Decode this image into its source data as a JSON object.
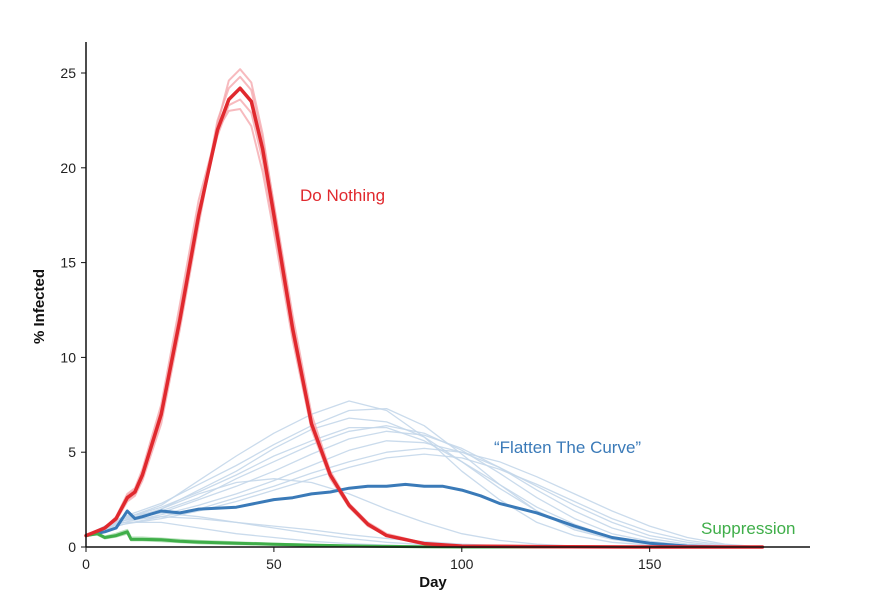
{
  "chart_data": {
    "type": "line",
    "title": "",
    "xlabel": "Day",
    "ylabel": "% Infected",
    "xlim": [
      0,
      190
    ],
    "ylim": [
      0,
      26
    ],
    "xticks": [
      0,
      50,
      100,
      150
    ],
    "yticks": [
      0,
      5,
      10,
      15,
      20,
      25
    ],
    "grid": false,
    "legend": "inline labels",
    "series": [
      {
        "name": "Do Nothing",
        "color": "#e0292e",
        "ensemble_color": "#f4a3a8",
        "x": [
          0,
          5,
          8,
          11,
          13,
          15,
          20,
          25,
          30,
          35,
          38,
          41,
          44,
          47,
          50,
          55,
          60,
          65,
          70,
          75,
          80,
          90,
          100,
          120,
          150,
          180
        ],
        "y": [
          0.6,
          1.0,
          1.5,
          2.6,
          2.9,
          3.8,
          7.0,
          12.0,
          17.5,
          22.0,
          23.6,
          24.2,
          23.5,
          21.0,
          17.5,
          11.5,
          6.5,
          3.8,
          2.2,
          1.2,
          0.6,
          0.18,
          0.05,
          0.02,
          0.0,
          0.0
        ],
        "ensemble": [
          {
            "x": [
              0,
              5,
              8,
              11,
              13,
              15,
              20,
              25,
              30,
              35,
              38,
              41,
              44,
              47,
              50,
              55,
              60,
              65,
              70,
              75,
              80,
              90,
              100,
              120,
              150,
              180
            ],
            "y": [
              0.6,
              1.0,
              1.4,
              2.4,
              2.7,
              3.5,
              6.5,
              11.5,
              17.0,
              22.3,
              24.6,
              25.2,
              24.5,
              21.8,
              18.0,
              11.8,
              6.7,
              3.9,
              2.2,
              1.2,
              0.6,
              0.18,
              0.05,
              0.02,
              0.0,
              0.0
            ]
          },
          {
            "x": [
              0,
              5,
              8,
              11,
              13,
              15,
              20,
              25,
              30,
              35,
              38,
              41,
              44,
              47,
              50,
              55,
              60,
              65,
              70,
              75,
              80,
              90,
              100,
              120,
              150,
              180
            ],
            "y": [
              0.6,
              1.0,
              1.6,
              2.8,
              3.1,
              4.1,
              7.5,
              12.8,
              18.3,
              22.0,
              23.0,
              23.1,
              22.2,
              19.8,
              16.6,
              10.9,
              6.2,
              3.6,
              2.1,
              1.1,
              0.6,
              0.18,
              0.05,
              0.02,
              0.0,
              0.0
            ]
          },
          {
            "x": [
              0,
              5,
              8,
              11,
              13,
              15,
              20,
              25,
              30,
              35,
              38,
              41,
              44,
              47,
              50,
              55,
              60,
              65,
              70,
              75,
              80,
              90,
              100,
              120,
              150,
              180
            ],
            "y": [
              0.6,
              1.0,
              1.5,
              2.5,
              2.8,
              3.7,
              6.8,
              11.8,
              17.3,
              22.5,
              24.2,
              24.8,
              24.1,
              21.5,
              18.1,
              12.2,
              7.0,
              4.0,
              2.3,
              1.3,
              0.7,
              0.2,
              0.05,
              0.02,
              0.0,
              0.0
            ]
          },
          {
            "x": [
              0,
              5,
              8,
              11,
              13,
              15,
              20,
              25,
              30,
              35,
              38,
              41,
              44,
              47,
              50,
              55,
              60,
              65,
              70,
              75,
              80,
              90,
              100,
              120,
              150,
              180
            ],
            "y": [
              0.6,
              1.0,
              1.5,
              2.7,
              3.0,
              3.9,
              7.2,
              12.4,
              17.8,
              21.7,
              23.3,
              23.6,
              22.9,
              20.4,
              17.0,
              11.2,
              6.4,
              3.7,
              2.1,
              1.2,
              0.6,
              0.17,
              0.05,
              0.02,
              0.0,
              0.0
            ]
          }
        ]
      },
      {
        "name": "“Flatten The Curve”",
        "color": "#3a7ab8",
        "ensemble_color": "#c4d7ea",
        "x": [
          0,
          5,
          8,
          11,
          13,
          15,
          20,
          25,
          30,
          40,
          50,
          55,
          60,
          65,
          70,
          75,
          80,
          85,
          90,
          95,
          100,
          105,
          110,
          120,
          130,
          140,
          150,
          160,
          170,
          180
        ],
        "y": [
          0.6,
          0.8,
          1.0,
          1.9,
          1.5,
          1.6,
          1.9,
          1.8,
          2.0,
          2.1,
          2.5,
          2.6,
          2.8,
          2.9,
          3.1,
          3.2,
          3.2,
          3.3,
          3.2,
          3.2,
          3.0,
          2.7,
          2.3,
          1.8,
          1.1,
          0.5,
          0.2,
          0.05,
          0.0,
          0.0
        ],
        "ensemble": [
          {
            "x": [
              0,
              10,
              20,
              30,
              40,
              50,
              60,
              70,
              80,
              90,
              100,
              110,
              120,
              130,
              140,
              150,
              160,
              170,
              180
            ],
            "y": [
              0.6,
              1.5,
              2.2,
              3.5,
              4.8,
              6.0,
              7.0,
              7.7,
              7.2,
              5.8,
              4.0,
              2.5,
              1.3,
              0.6,
              0.25,
              0.1,
              0.05,
              0.0,
              0.0
            ]
          },
          {
            "x": [
              0,
              10,
              20,
              30,
              40,
              50,
              60,
              70,
              80,
              90,
              100,
              110,
              120,
              130,
              140,
              150,
              160,
              170,
              180
            ],
            "y": [
              0.6,
              1.4,
              2.0,
              3.0,
              4.0,
              5.2,
              6.2,
              6.8,
              6.6,
              5.8,
              4.5,
              3.1,
              1.9,
              1.0,
              0.45,
              0.2,
              0.05,
              0.0,
              0.0
            ]
          },
          {
            "x": [
              0,
              10,
              20,
              30,
              40,
              50,
              60,
              70,
              80,
              90,
              100,
              110,
              120,
              130,
              140,
              150,
              160,
              170,
              180
            ],
            "y": [
              0.6,
              1.6,
              1.9,
              2.6,
              3.6,
              4.5,
              5.4,
              6.1,
              6.4,
              6.0,
              5.1,
              3.9,
              2.6,
              1.5,
              0.7,
              0.3,
              0.1,
              0.0,
              0.0
            ]
          },
          {
            "x": [
              0,
              10,
              20,
              30,
              40,
              50,
              60,
              70,
              80,
              90,
              100,
              110,
              120,
              130,
              140,
              150,
              160,
              170,
              180
            ],
            "y": [
              0.6,
              1.3,
              1.7,
              2.2,
              2.8,
              3.5,
              4.3,
              5.1,
              5.6,
              5.5,
              5.0,
              4.2,
              3.2,
              2.2,
              1.3,
              0.6,
              0.25,
              0.05,
              0.0
            ]
          },
          {
            "x": [
              0,
              10,
              20,
              30,
              40,
              50,
              60,
              70,
              80,
              90,
              100,
              110,
              120,
              130,
              140,
              150,
              160,
              170,
              180
            ],
            "y": [
              0.6,
              1.5,
              2.1,
              2.9,
              3.8,
              4.8,
              5.6,
              6.3,
              6.3,
              5.6,
              4.5,
              3.3,
              2.1,
              1.2,
              0.5,
              0.2,
              0.05,
              0.0,
              0.0
            ]
          },
          {
            "x": [
              0,
              10,
              20,
              30,
              40,
              50,
              60,
              70,
              80,
              90,
              100,
              110,
              120,
              130,
              140,
              150,
              160,
              170,
              180
            ],
            "y": [
              0.6,
              1.2,
              1.5,
              1.9,
              2.4,
              3.0,
              3.6,
              4.2,
              4.7,
              4.9,
              4.7,
              4.1,
              3.3,
              2.4,
              1.5,
              0.8,
              0.35,
              0.1,
              0.0
            ]
          },
          {
            "x": [
              0,
              10,
              20,
              30,
              40,
              50,
              60,
              70,
              80,
              90,
              100,
              110,
              120,
              130,
              140,
              150,
              160,
              170,
              180
            ],
            "y": [
              0.6,
              1.4,
              1.8,
              2.5,
              3.2,
              4.0,
              4.9,
              5.7,
              6.1,
              5.9,
              5.2,
              4.2,
              3.0,
              1.9,
              1.0,
              0.45,
              0.15,
              0.03,
              0.0
            ]
          },
          {
            "x": [
              0,
              10,
              20,
              30,
              40,
              50,
              60,
              70,
              80,
              90,
              100,
              110,
              120,
              130,
              140,
              150,
              160,
              170,
              180
            ],
            "y": [
              0.6,
              1.6,
              2.3,
              3.3,
              4.3,
              5.4,
              6.4,
              7.2,
              7.3,
              6.4,
              4.9,
              3.3,
              1.9,
              0.9,
              0.4,
              0.15,
              0.05,
              0.0,
              0.0
            ]
          },
          {
            "x": [
              0,
              10,
              20,
              30,
              40,
              50,
              60,
              70,
              80,
              90,
              100,
              110,
              120,
              130,
              140,
              150,
              160,
              170,
              180
            ],
            "y": [
              0.6,
              1.2,
              1.6,
              2.0,
              2.6,
              3.2,
              3.9,
              4.5,
              5.0,
              5.2,
              5.0,
              4.5,
              3.7,
              2.8,
              1.9,
              1.1,
              0.5,
              0.15,
              0.0
            ]
          },
          {
            "x": [
              0,
              10,
              20,
              30,
              40,
              50,
              60,
              70,
              80,
              90,
              100,
              110,
              120,
              130,
              140,
              150,
              160,
              170,
              180
            ],
            "y": [
              0.6,
              1.5,
              1.8,
              1.6,
              1.3,
              1.0,
              0.7,
              0.45,
              0.25,
              0.12,
              0.05,
              0.02,
              0.0,
              0.0,
              0.0,
              0.0,
              0.0,
              0.0,
              0.0
            ]
          },
          {
            "x": [
              0,
              10,
              20,
              30,
              40,
              50,
              60,
              70,
              80,
              90,
              100,
              110,
              120,
              130,
              140,
              150,
              160,
              170,
              180
            ],
            "y": [
              0.6,
              1.3,
              1.3,
              1.0,
              0.7,
              0.5,
              0.3,
              0.18,
              0.1,
              0.05,
              0.02,
              0.0,
              0.0,
              0.0,
              0.0,
              0.0,
              0.0,
              0.0,
              0.0
            ]
          },
          {
            "x": [
              0,
              10,
              20,
              30,
              40,
              50,
              60,
              70,
              80,
              90,
              100,
              110,
              120,
              130,
              140,
              150,
              160,
              170,
              180
            ],
            "y": [
              0.6,
              1.4,
              1.6,
              1.5,
              1.3,
              1.1,
              0.9,
              0.65,
              0.45,
              0.28,
              0.15,
              0.07,
              0.03,
              0.0,
              0.0,
              0.0,
              0.0,
              0.0,
              0.0
            ]
          },
          {
            "x": [
              0,
              10,
              20,
              30,
              40,
              50,
              60,
              70,
              80,
              90,
              100,
              110,
              120,
              130,
              140,
              150,
              160,
              170,
              180
            ],
            "y": [
              0.6,
              1.4,
              2.0,
              2.8,
              3.4,
              3.6,
              3.4,
              2.8,
              2.0,
              1.3,
              0.7,
              0.35,
              0.15,
              0.05,
              0.0,
              0.0,
              0.0,
              0.0,
              0.0
            ]
          }
        ]
      },
      {
        "name": "Suppression",
        "color": "#3fae49",
        "ensemble_color": "#9ed6a3",
        "x": [
          0,
          3,
          5,
          8,
          11,
          12,
          15,
          20,
          25,
          30,
          40,
          50,
          60,
          70,
          80,
          90,
          100,
          120,
          150,
          180
        ],
        "y": [
          0.6,
          0.7,
          0.5,
          0.6,
          0.8,
          0.4,
          0.4,
          0.38,
          0.3,
          0.26,
          0.2,
          0.15,
          0.1,
          0.06,
          0.03,
          0.01,
          0.0,
          0.0,
          0.0,
          0.0
        ],
        "ensemble": [
          {
            "x": [
              0,
              3,
              5,
              8,
              11,
              12,
              15,
              20,
              25,
              30,
              40,
              50,
              60,
              70,
              80,
              90,
              100,
              120,
              150,
              180
            ],
            "y": [
              0.6,
              0.75,
              0.55,
              0.7,
              0.9,
              0.5,
              0.5,
              0.45,
              0.38,
              0.32,
              0.25,
              0.18,
              0.12,
              0.07,
              0.03,
              0.01,
              0.0,
              0.0,
              0.0,
              0.0
            ]
          },
          {
            "x": [
              0,
              3,
              5,
              8,
              11,
              12,
              15,
              20,
              25,
              30,
              40,
              50,
              60,
              70,
              80,
              90,
              100,
              120,
              150,
              180
            ],
            "y": [
              0.6,
              0.65,
              0.45,
              0.55,
              0.7,
              0.35,
              0.35,
              0.3,
              0.25,
              0.2,
              0.15,
              0.11,
              0.07,
              0.04,
              0.02,
              0.0,
              0.0,
              0.0,
              0.0,
              0.0
            ]
          }
        ]
      }
    ]
  }
}
